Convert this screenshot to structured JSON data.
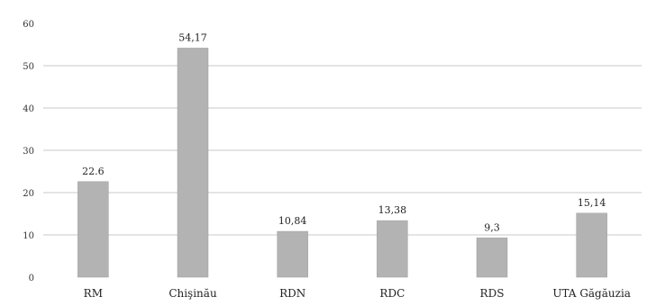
{
  "chart_data": {
    "type": "bar",
    "categories": [
      "RM",
      "Chişinău",
      "RDN",
      "RDC",
      "RDS",
      "UTA Găgăuzia"
    ],
    "values": [
      22.6,
      54.17,
      10.84,
      13.38,
      9.3,
      15.14
    ],
    "data_labels": [
      "22.6",
      "54,17",
      "10,84",
      "13,38",
      "9,3",
      "15,14"
    ],
    "title": "",
    "xlabel": "",
    "ylabel": "",
    "ylim": [
      0,
      60
    ],
    "yticks": [
      0,
      10,
      20,
      30,
      40,
      50,
      60
    ],
    "grid": true,
    "colors": {
      "bar": "#b3b3b3",
      "grid": "#c8c8c8"
    }
  }
}
